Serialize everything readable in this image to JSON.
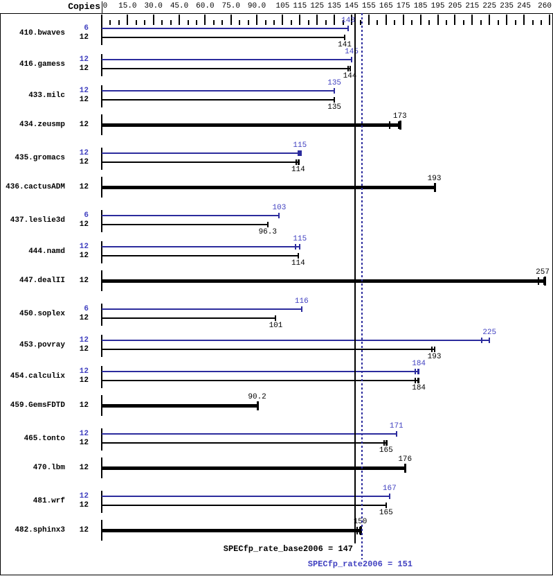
{
  "header": {
    "copies_label": "Copies"
  },
  "footer": {
    "base_label": "SPECfp_rate_base2006 = 147",
    "peak_label": "SPECfp_rate2006 = 151"
  },
  "colors": {
    "bar_peak": "#2b2b9d",
    "bar_base": "#000000",
    "text_peak": "#4040c0",
    "text_base": "#000000",
    "ref_base_line": "#000000",
    "ref_peak_line": "#2b2b9d"
  },
  "chart_data": {
    "type": "bar",
    "orientation": "horizontal",
    "title": "",
    "xlabel": "",
    "ylabel": "Copies",
    "grid": false,
    "axis": {
      "min": 0,
      "max": 260,
      "major_tick_values": [
        0,
        15,
        30,
        45,
        60,
        75,
        90,
        105,
        115,
        125,
        135,
        145,
        155,
        165,
        175,
        185,
        195,
        205,
        215,
        225,
        235,
        245,
        260
      ],
      "major_tick_labels": [
        "0",
        "15.0",
        "30.0",
        "45.0",
        "60.0",
        "75.0",
        "90.0",
        "105",
        "115",
        "125",
        "135",
        "145",
        "155",
        "165",
        "175",
        "185",
        "195",
        "205",
        "215",
        "225",
        "235",
        "245",
        "260"
      ],
      "minor_tick_step": 5
    },
    "reference_lines": [
      {
        "name": "base_mean",
        "value": 147,
        "style": "solid"
      },
      {
        "name": "peak_mean",
        "value": 151,
        "style": "dotted"
      }
    ],
    "summary": {
      "SPECfp_rate_base2006": 147,
      "SPECfp_rate2006": 151
    },
    "benchmarks": [
      {
        "name": "410.bwaves",
        "bars": [
          {
            "kind": "peak",
            "copies": "6",
            "value": 143,
            "label": "143"
          },
          {
            "kind": "base",
            "copies": "12",
            "value": 141,
            "label": "141"
          }
        ]
      },
      {
        "name": "416.gamess",
        "bars": [
          {
            "kind": "peak",
            "copies": "12",
            "value": 145,
            "label": "145"
          },
          {
            "kind": "base",
            "copies": "12",
            "value": 144,
            "label": "144",
            "err_ticks": [
              142.8,
              144.3
            ]
          }
        ]
      },
      {
        "name": "433.milc",
        "bars": [
          {
            "kind": "peak",
            "copies": "12",
            "value": 135,
            "label": "135"
          },
          {
            "kind": "base",
            "copies": "12",
            "value": 135,
            "label": "135"
          }
        ]
      },
      {
        "name": "434.zeusmp",
        "bars": [
          {
            "kind": "single",
            "copies": "12",
            "value": 173,
            "label": "173",
            "err_ticks": [
              167.1,
              172.3
            ]
          }
        ]
      },
      {
        "name": "435.gromacs",
        "bars": [
          {
            "kind": "peak",
            "copies": "12",
            "value": 115,
            "label": "115",
            "err_ticks": [
              114.1,
              115.7
            ]
          },
          {
            "kind": "base",
            "copies": "12",
            "value": 114,
            "label": "114",
            "err_ticks": [
              113.0,
              114.6
            ]
          }
        ]
      },
      {
        "name": "436.cactusADM",
        "bars": [
          {
            "kind": "single",
            "copies": "12",
            "value": 193,
            "label": "193"
          }
        ]
      },
      {
        "name": "437.leslie3d",
        "bars": [
          {
            "kind": "peak",
            "copies": "6",
            "value": 103,
            "label": "103"
          },
          {
            "kind": "base",
            "copies": "12",
            "value": 96.3,
            "label": "96.3"
          }
        ]
      },
      {
        "name": "444.namd",
        "bars": [
          {
            "kind": "peak",
            "copies": "12",
            "value": 115,
            "label": "115",
            "err_ticks": [
              112.4
            ]
          },
          {
            "kind": "base",
            "copies": "12",
            "value": 114,
            "label": "114"
          }
        ]
      },
      {
        "name": "447.dealII",
        "bars": [
          {
            "kind": "single",
            "copies": "12",
            "value": 257,
            "label": "257",
            "err_ticks": [
              253.5,
              256.8
            ]
          }
        ]
      },
      {
        "name": "450.soplex",
        "bars": [
          {
            "kind": "peak",
            "copies": "6",
            "value": 116,
            "label": "116"
          },
          {
            "kind": "base",
            "copies": "12",
            "value": 101,
            "label": "101"
          }
        ]
      },
      {
        "name": "453.povray",
        "bars": [
          {
            "kind": "peak",
            "copies": "12",
            "value": 225,
            "label": "225",
            "err_ticks": [
              220.5
            ]
          },
          {
            "kind": "base",
            "copies": "12",
            "value": 193,
            "label": "193",
            "err_ticks": [
              191.6,
              193.2
            ]
          }
        ]
      },
      {
        "name": "454.calculix",
        "bars": [
          {
            "kind": "peak",
            "copies": "12",
            "value": 184,
            "label": "184",
            "err_ticks": [
              181.8,
              183.4
            ]
          },
          {
            "kind": "base",
            "copies": "12",
            "value": 184,
            "label": "184",
            "err_ticks": [
              181.8,
              183.4
            ]
          }
        ]
      },
      {
        "name": "459.GemsFDTD",
        "bars": [
          {
            "kind": "single",
            "copies": "12",
            "value": 90.2,
            "label": "90.2"
          }
        ]
      },
      {
        "name": "465.tonto",
        "bars": [
          {
            "kind": "peak",
            "copies": "12",
            "value": 171,
            "label": "171"
          },
          {
            "kind": "base",
            "copies": "12",
            "value": 165,
            "label": "165",
            "err_ticks": [
              163.8,
              165.3
            ]
          }
        ]
      },
      {
        "name": "470.lbm",
        "bars": [
          {
            "kind": "single",
            "copies": "12",
            "value": 176,
            "label": "176"
          }
        ]
      },
      {
        "name": "481.wrf",
        "bars": [
          {
            "kind": "peak",
            "copies": "12",
            "value": 167,
            "label": "167"
          },
          {
            "kind": "base",
            "copies": "12",
            "value": 165,
            "label": "165"
          }
        ]
      },
      {
        "name": "482.sphinx3",
        "bars": [
          {
            "kind": "single",
            "copies": "12",
            "value": 150,
            "label": "150",
            "err_ticks": [
              148.2,
              149.8
            ]
          }
        ]
      }
    ]
  }
}
